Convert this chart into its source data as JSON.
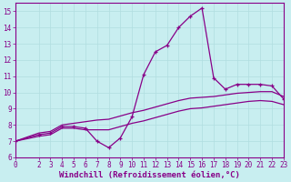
{
  "xlabel": "Windchill (Refroidissement éolien,°C)",
  "bg_color": "#c8eef0",
  "line_color": "#880088",
  "xlim": [
    0,
    23
  ],
  "ylim": [
    6,
    15.5
  ],
  "xticks": [
    0,
    2,
    3,
    4,
    5,
    6,
    7,
    8,
    9,
    10,
    11,
    12,
    13,
    14,
    15,
    16,
    17,
    18,
    19,
    20,
    21,
    22,
    23
  ],
  "yticks": [
    6,
    7,
    8,
    9,
    10,
    11,
    12,
    13,
    14,
    15
  ],
  "grid_color": "#b0dde0",
  "series": {
    "line1_x": [
      0,
      2,
      3,
      4,
      5,
      6,
      7,
      8,
      9,
      10,
      11,
      12,
      13,
      14,
      15,
      16,
      17,
      18,
      19,
      20,
      21,
      22,
      23
    ],
    "line1_y": [
      7.0,
      7.4,
      7.5,
      7.9,
      7.9,
      7.8,
      7.0,
      6.6,
      7.2,
      8.5,
      11.1,
      12.5,
      12.9,
      14.0,
      14.7,
      15.2,
      10.9,
      10.2,
      10.5,
      10.5,
      10.5,
      10.4,
      9.6
    ],
    "line2_x": [
      0,
      2,
      3,
      4,
      5,
      6,
      7,
      8,
      9,
      10,
      11,
      12,
      13,
      14,
      15,
      16,
      17,
      18,
      19,
      20,
      21,
      22,
      23
    ],
    "line2_y": [
      7.0,
      7.5,
      7.6,
      8.0,
      8.1,
      8.2,
      8.3,
      8.35,
      8.55,
      8.75,
      8.9,
      9.1,
      9.3,
      9.5,
      9.65,
      9.7,
      9.75,
      9.85,
      9.95,
      10.0,
      10.05,
      10.05,
      9.75
    ],
    "line3_x": [
      0,
      2,
      3,
      4,
      5,
      6,
      7,
      8,
      9,
      10,
      11,
      12,
      13,
      14,
      15,
      16,
      17,
      18,
      19,
      20,
      21,
      22,
      23
    ],
    "line3_y": [
      7.0,
      7.3,
      7.4,
      7.8,
      7.8,
      7.7,
      7.7,
      7.7,
      7.9,
      8.1,
      8.25,
      8.45,
      8.65,
      8.85,
      9.0,
      9.05,
      9.15,
      9.25,
      9.35,
      9.45,
      9.5,
      9.45,
      9.25
    ]
  },
  "xlabel_fontsize": 6.5,
  "tick_fontsize": 5.5
}
